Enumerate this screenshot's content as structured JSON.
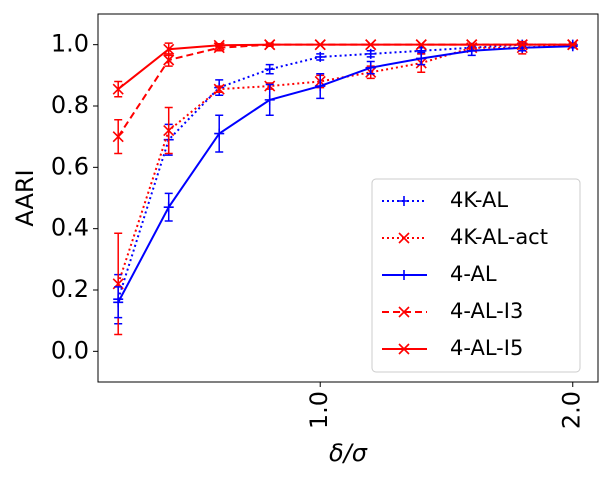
{
  "chart_data": {
    "type": "line",
    "xlabel": "δ/σ",
    "ylabel": "AARI",
    "x": [
      0.2,
      0.4,
      0.6,
      0.8,
      1.0,
      1.2,
      1.4,
      1.6,
      1.8,
      2.0
    ],
    "series": [
      {
        "name": "4K-AL",
        "color": "#0000ff",
        "linestyle": "dotted",
        "marker": "+",
        "values": [
          0.17,
          0.69,
          0.86,
          0.92,
          0.96,
          0.97,
          0.98,
          0.99,
          1.0,
          1.0
        ],
        "errors": [
          0.08,
          0.05,
          0.025,
          0.015,
          0.01,
          0.01,
          0.01,
          0.01,
          0.005,
          0.005
        ]
      },
      {
        "name": "4K-AL-act",
        "color": "#ff0000",
        "linestyle": "dotted",
        "marker": "x",
        "values": [
          0.22,
          0.72,
          0.855,
          0.865,
          0.88,
          0.91,
          0.94,
          0.99,
          0.99,
          1.0
        ],
        "errors": [
          0.165,
          0.075,
          0.01,
          0.01,
          0.02,
          0.02,
          0.03,
          0.01,
          0.02,
          0.005
        ]
      },
      {
        "name": "4-AL",
        "color": "#0000ff",
        "linestyle": "solid",
        "marker": "+",
        "values": [
          0.16,
          0.47,
          0.71,
          0.82,
          0.865,
          0.925,
          0.955,
          0.98,
          0.99,
          0.995
        ],
        "errors": [
          0.05,
          0.045,
          0.06,
          0.05,
          0.04,
          0.02,
          0.02,
          0.015,
          0.01,
          0.005
        ]
      },
      {
        "name": "4-AL-I3",
        "color": "#ff0000",
        "linestyle": "dashed",
        "marker": "x",
        "values": [
          0.7,
          0.95,
          0.99,
          1.0,
          1.0,
          1.0,
          1.0,
          1.0,
          1.0,
          1.0
        ],
        "errors": [
          0.055,
          0.02,
          0.01,
          0.005,
          0.0,
          0.0,
          0.0,
          0.0,
          0.0,
          0.0
        ]
      },
      {
        "name": "4-AL-I5",
        "color": "#ff0000",
        "linestyle": "solid",
        "marker": "x",
        "values": [
          0.855,
          0.985,
          0.998,
          1.0,
          1.0,
          1.0,
          1.0,
          1.0,
          1.0,
          1.0
        ],
        "errors": [
          0.025,
          0.02,
          0.005,
          0.0,
          0.0,
          0.0,
          0.0,
          0.0,
          0.0,
          0.0
        ]
      }
    ],
    "xlim": [
      0.12,
      2.1
    ],
    "ylim": [
      -0.1,
      1.1
    ],
    "xticks": [
      {
        "value": 1.0,
        "label": "1.0"
      },
      {
        "value": 2.0,
        "label": "2.0"
      }
    ],
    "yticks": [
      {
        "value": 0.0,
        "label": "0.0"
      },
      {
        "value": 0.2,
        "label": "0.2"
      },
      {
        "value": 0.4,
        "label": "0.4"
      },
      {
        "value": 0.6,
        "label": "0.6"
      },
      {
        "value": 0.8,
        "label": "0.8"
      },
      {
        "value": 1.0,
        "label": "1.0"
      }
    ],
    "legend": "lower right",
    "grid": false
  }
}
